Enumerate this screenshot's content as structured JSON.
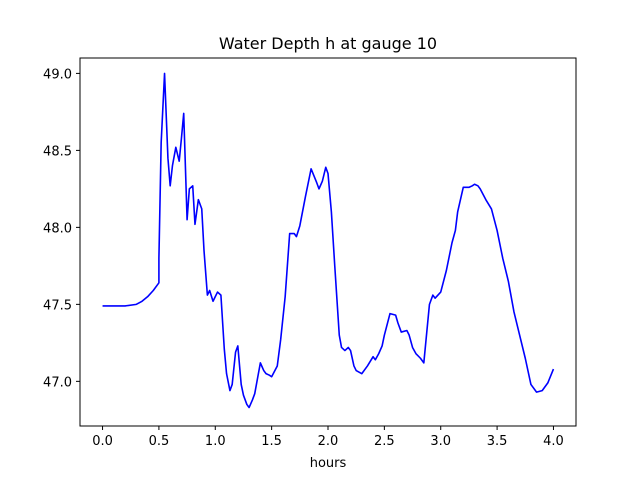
{
  "chart_data": {
    "type": "line",
    "title": "Water Depth h at gauge 10",
    "xlabel": "hours",
    "ylabel": "",
    "xlim": [
      -0.2,
      4.2
    ],
    "ylim": [
      46.71,
      49.1
    ],
    "x_ticks": [
      0.0,
      0.5,
      1.0,
      1.5,
      2.0,
      2.5,
      3.0,
      3.5,
      4.0
    ],
    "x_tick_labels": [
      "0.0",
      "0.5",
      "1.0",
      "1.5",
      "2.0",
      "2.5",
      "3.0",
      "3.5",
      "4.0"
    ],
    "y_ticks": [
      47.0,
      47.5,
      48.0,
      48.5,
      49.0
    ],
    "y_tick_labels": [
      "47.0",
      "47.5",
      "48.0",
      "48.5",
      "49.0"
    ],
    "grid": false,
    "legend": false,
    "line_color": "#0000ff",
    "series": [
      {
        "x": [
          0.0,
          0.1,
          0.2,
          0.3,
          0.35,
          0.4,
          0.45,
          0.5,
          0.5,
          0.52,
          0.55,
          0.58,
          0.6,
          0.62,
          0.65,
          0.68,
          0.7,
          0.72,
          0.75,
          0.77,
          0.8,
          0.82,
          0.85,
          0.88,
          0.9,
          0.93,
          0.95,
          0.98,
          1.0,
          1.02,
          1.05,
          1.08,
          1.1,
          1.13,
          1.15,
          1.18,
          1.2,
          1.23,
          1.25,
          1.28,
          1.3,
          1.33,
          1.35,
          1.4,
          1.43,
          1.45,
          1.48,
          1.5,
          1.55,
          1.58,
          1.62,
          1.66,
          1.7,
          1.72,
          1.75,
          1.8,
          1.85,
          1.9,
          1.92,
          1.95,
          1.98,
          2.0,
          2.03,
          2.06,
          2.1,
          2.12,
          2.15,
          2.18,
          2.2,
          2.23,
          2.25,
          2.3,
          2.35,
          2.4,
          2.42,
          2.45,
          2.48,
          2.5,
          2.55,
          2.6,
          2.62,
          2.65,
          2.7,
          2.72,
          2.75,
          2.78,
          2.82,
          2.85,
          2.9,
          2.93,
          2.95,
          3.0,
          3.05,
          3.1,
          3.13,
          3.15,
          3.2,
          3.25,
          3.28,
          3.3,
          3.33,
          3.35,
          3.4,
          3.45,
          3.5,
          3.55,
          3.6,
          3.65,
          3.7,
          3.75,
          3.8,
          3.85,
          3.9,
          3.95,
          4.0
        ],
        "y": [
          47.49,
          47.49,
          47.49,
          47.5,
          47.52,
          47.55,
          47.59,
          47.64,
          47.8,
          48.55,
          49.0,
          48.45,
          48.27,
          48.4,
          48.52,
          48.43,
          48.58,
          48.74,
          48.05,
          48.25,
          48.27,
          48.02,
          48.18,
          48.12,
          47.85,
          47.56,
          47.59,
          47.52,
          47.55,
          47.58,
          47.56,
          47.21,
          47.05,
          46.94,
          46.98,
          47.19,
          47.23,
          46.98,
          46.91,
          46.85,
          46.83,
          46.88,
          46.92,
          47.12,
          47.07,
          47.05,
          47.04,
          47.03,
          47.1,
          47.27,
          47.55,
          47.96,
          47.96,
          47.94,
          48.01,
          48.2,
          48.38,
          48.29,
          48.25,
          48.3,
          48.39,
          48.35,
          48.1,
          47.75,
          47.3,
          47.22,
          47.2,
          47.22,
          47.2,
          47.1,
          47.07,
          47.05,
          47.1,
          47.16,
          47.14,
          47.18,
          47.23,
          47.3,
          47.44,
          47.43,
          47.38,
          47.32,
          47.33,
          47.3,
          47.22,
          47.18,
          47.15,
          47.12,
          47.5,
          47.56,
          47.54,
          47.58,
          47.72,
          47.9,
          47.98,
          48.1,
          48.26,
          48.26,
          48.27,
          48.28,
          48.27,
          48.25,
          48.18,
          48.12,
          47.98,
          47.8,
          47.65,
          47.45,
          47.3,
          47.15,
          46.98,
          46.93,
          46.94,
          46.99,
          47.08
        ]
      }
    ]
  }
}
